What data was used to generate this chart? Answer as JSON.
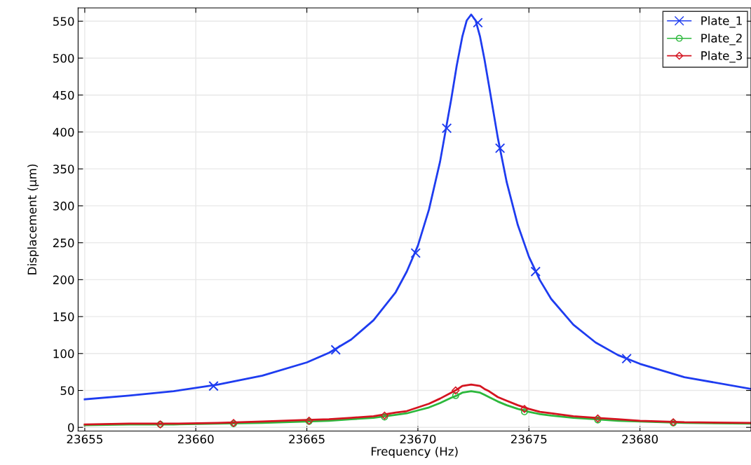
{
  "chart_data": {
    "type": "line",
    "xlabel": "Frequency (Hz)",
    "ylabel": "Displacement (µm)",
    "xlim": [
      23654.7,
      23685
    ],
    "xticks": [
      23655,
      23660,
      23665,
      23670,
      23675,
      23680
    ],
    "ylim": [
      -5,
      568
    ],
    "yticks": [
      0,
      50,
      100,
      150,
      200,
      250,
      300,
      350,
      400,
      450,
      500,
      550
    ],
    "grid": true,
    "legend": "top right",
    "series": [
      {
        "name": "Plate_1",
        "color": "#1e3cf0",
        "x": [
          23655,
          23657,
          23659,
          23661,
          23663,
          23665,
          23666,
          23667,
          23668,
          23669,
          23669.5,
          23670,
          23670.5,
          23671,
          23671.5,
          23671.75,
          23672,
          23672.2,
          23672.4,
          23672.6,
          23672.8,
          23673,
          23673.2,
          23673.6,
          23674,
          23674.5,
          23675,
          23675.5,
          23676,
          23677,
          23678,
          23679,
          23680,
          23682,
          23685
        ],
        "values": [
          38,
          43,
          49,
          58,
          70,
          88,
          101,
          119,
          145,
          183,
          211,
          246,
          295,
          360,
          444,
          490,
          529,
          551,
          559,
          551,
          529,
          498,
          463,
          392,
          332,
          274,
          231,
          199,
          174,
          139,
          115,
          98,
          86,
          68,
          52
        ]
      },
      {
        "name": "Plate_2",
        "color": "#2cb83c",
        "x": [
          23655,
          23657,
          23659,
          23661,
          23663,
          23665,
          23666,
          23667,
          23668,
          23669,
          23669.5,
          23670,
          23670.5,
          23671,
          23671.5,
          23671.75,
          23672,
          23672.2,
          23672.4,
          23672.6,
          23672.8,
          23673,
          23673.2,
          23673.6,
          23674,
          23674.5,
          23675,
          23675.5,
          23676,
          23677,
          23678,
          23679,
          23680,
          23682,
          23685
        ],
        "values": [
          3,
          4,
          4,
          5,
          6,
          8,
          9,
          11,
          13,
          17,
          19,
          23,
          27,
          33,
          40,
          43,
          47,
          48,
          49,
          48,
          47,
          44,
          41,
          35,
          30,
          25,
          21,
          18,
          16,
          13,
          11,
          9,
          8,
          6,
          5
        ]
      },
      {
        "name": "Plate_3",
        "color": "#d41420",
        "x": [
          23655,
          23657,
          23659,
          23661,
          23663,
          23665,
          23666,
          23667,
          23668,
          23669,
          23669.5,
          23670,
          23670.5,
          23671,
          23671.5,
          23671.75,
          23672,
          23672.2,
          23672.4,
          23672.6,
          23672.8,
          23673,
          23673.2,
          23673.6,
          23674,
          23674.5,
          23675,
          23675.5,
          23676,
          23677,
          23678,
          23679,
          23680,
          23682,
          23685
        ],
        "values": [
          4,
          5,
          5,
          6,
          8,
          10,
          11,
          13,
          15,
          20,
          22,
          27,
          32,
          39,
          47,
          51,
          56,
          57,
          58,
          57,
          56,
          52,
          49,
          41,
          36,
          30,
          25,
          21,
          19,
          15,
          13,
          11,
          9,
          7,
          6
        ]
      },
      {
        "color": "#1e3cf0",
        "type": "scatter",
        "marker": "cross",
        "x": [
          23660.8,
          23666.3,
          23669.9,
          23671.3,
          23672.7,
          23673.7,
          23675.3,
          23679.4
        ],
        "values": [
          56,
          105,
          236,
          405,
          548,
          378,
          211,
          93
        ]
      },
      {
        "color": "#2cb83c",
        "type": "scatter",
        "marker": "circle",
        "x": [
          23658.4,
          23661.7,
          23665.1,
          23668.5,
          23671.7,
          23674.8,
          23678.1,
          23681.5
        ],
        "values": [
          4,
          5,
          8,
          14,
          43,
          21,
          10,
          6
        ]
      },
      {
        "color": "#d41420",
        "type": "scatter",
        "marker": "diamond",
        "x": [
          23658.4,
          23661.7,
          23665.1,
          23668.5,
          23671.7,
          23674.8,
          23678.1,
          23681.5
        ],
        "values": [
          4,
          6,
          9,
          16,
          50,
          25,
          12,
          7
        ]
      }
    ]
  }
}
